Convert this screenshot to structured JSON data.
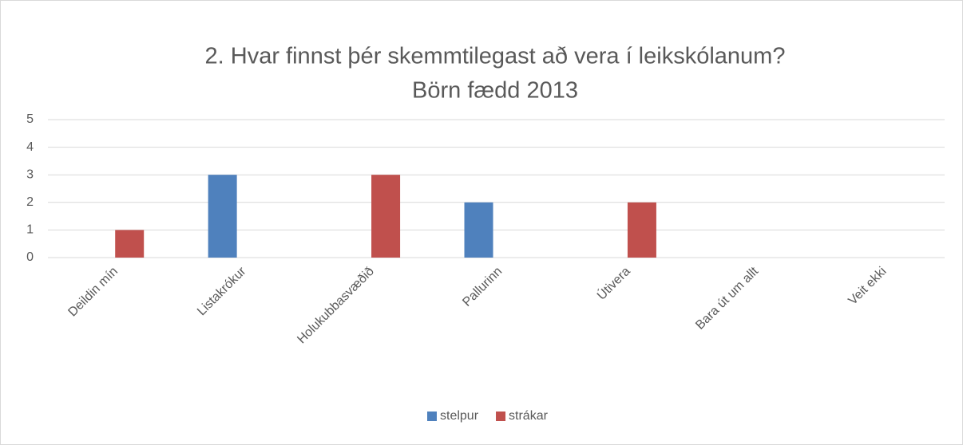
{
  "chart_data": {
    "type": "bar",
    "title": "2. Hvar finnst þér skemmtilegast að vera í  leikskólanum?",
    "subtitle": "Börn fædd 2013",
    "categories": [
      "Deildin mín",
      "Listakrókur",
      "Holukubbasvæðið",
      "Pallurinn",
      "Útivera",
      "Bara út um allt",
      "Veit ekki"
    ],
    "series": [
      {
        "name": "stelpur",
        "color": "#4f81bd",
        "values": [
          0,
          3,
          0,
          2,
          0,
          0,
          0
        ]
      },
      {
        "name": "strákar",
        "color": "#c0504d",
        "values": [
          1,
          0,
          3,
          0,
          2,
          0,
          0
        ]
      }
    ],
    "ylim": [
      0,
      5
    ],
    "yticks": [
      0,
      1,
      2,
      3,
      4,
      5
    ],
    "grid": true,
    "legend": "bottom"
  }
}
